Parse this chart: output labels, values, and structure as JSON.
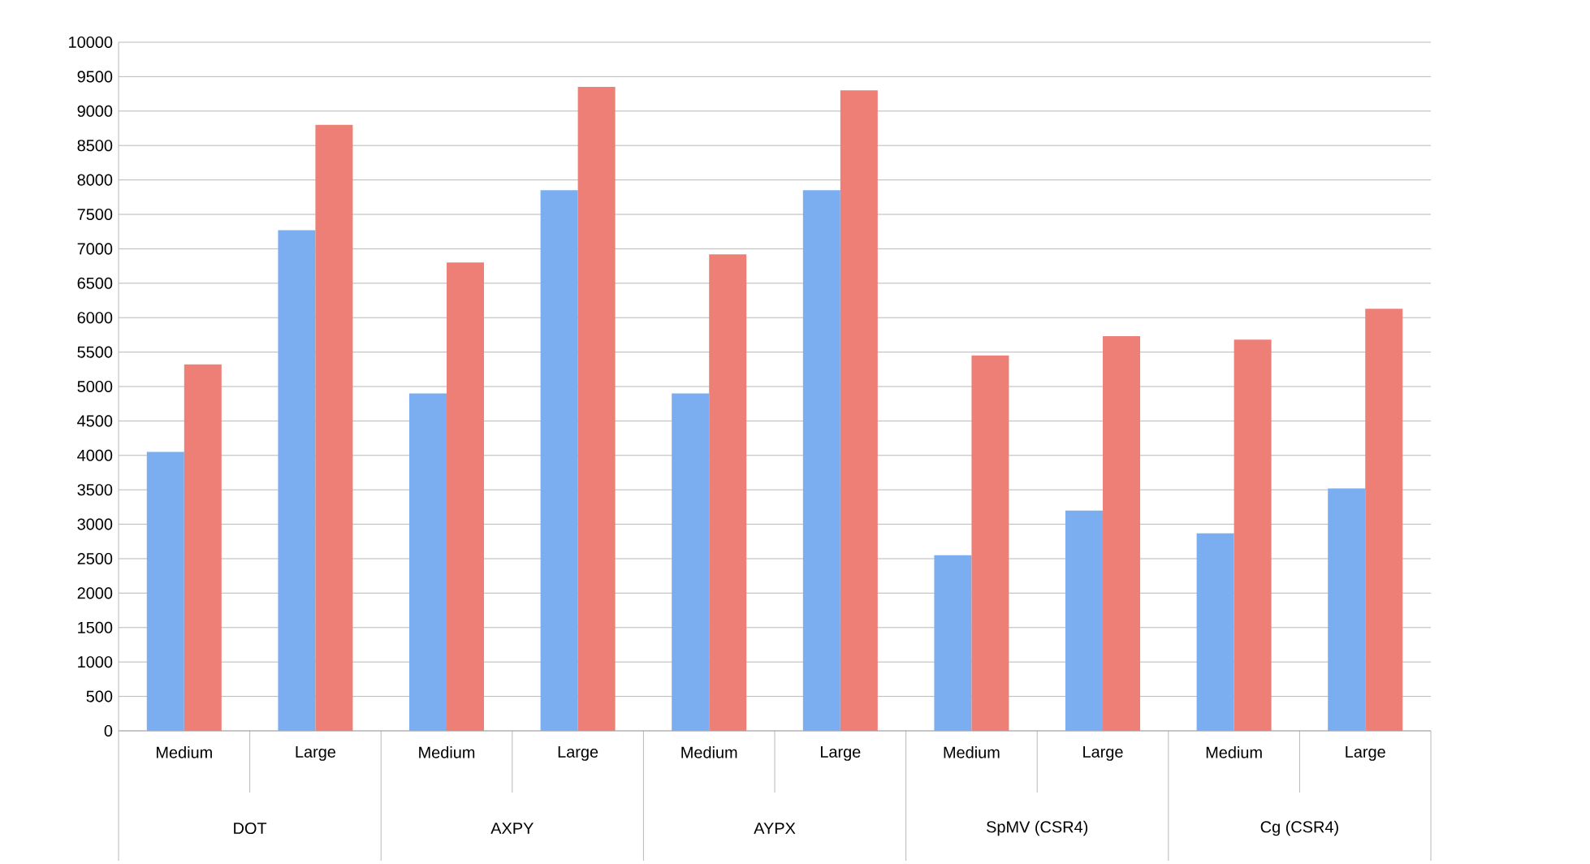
{
  "chart_data": {
    "type": "bar",
    "categories": [
      "Medium",
      "Large",
      "Medium",
      "Large",
      "Medium",
      "Large",
      "Medium",
      "Large",
      "Medium",
      "Large"
    ],
    "series": [
      {
        "color": "#7aaef0",
        "values": [
          4050,
          7270,
          4900,
          7850,
          4900,
          7850,
          2550,
          3200,
          2870,
          3520
        ]
      },
      {
        "color": "#ee7f77",
        "values": [
          5320,
          8800,
          6800,
          9350,
          6920,
          9300,
          5450,
          5730,
          5680,
          6130
        ]
      }
    ],
    "annotations": [
      "DOT",
      "AXPY",
      "AYPX",
      "SpMV (CSR4)",
      "Cg (CSR4)"
    ],
    "ylim": [
      0,
      10000
    ],
    "yticks": [
      0,
      500,
      1000,
      1500,
      2000,
      2500,
      3000,
      3500,
      4000,
      4500,
      5000,
      5500,
      6000,
      6500,
      7000,
      7500,
      8000,
      8500,
      9000,
      9500,
      10000
    ],
    "grid": "y"
  }
}
